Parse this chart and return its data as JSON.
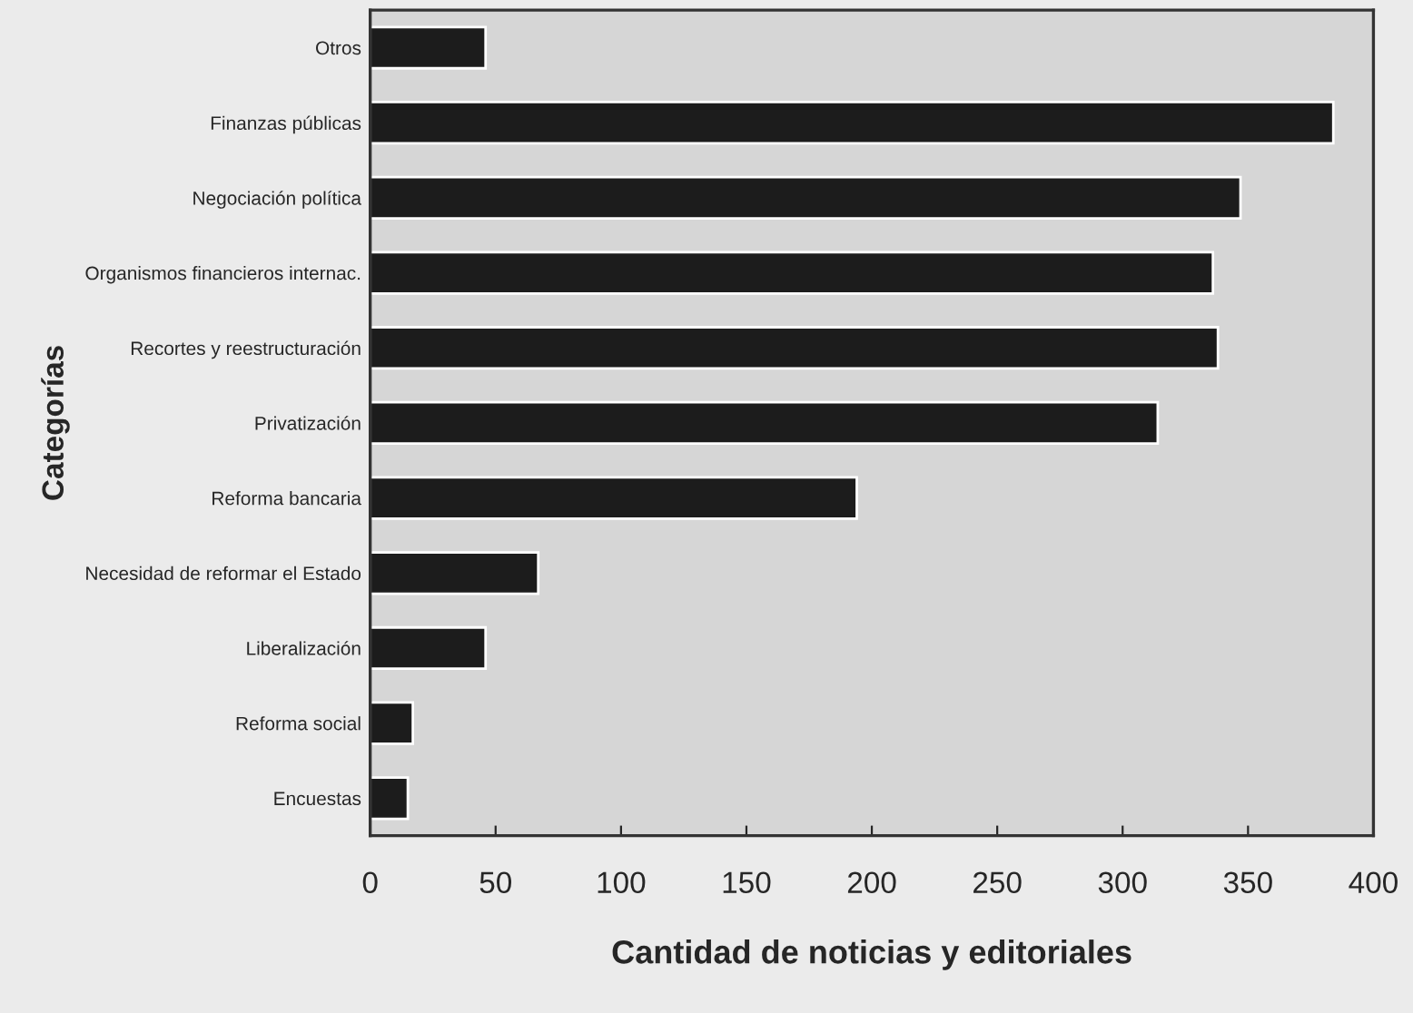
{
  "chart_data": {
    "type": "bar",
    "orientation": "horizontal",
    "categories": [
      "Otros",
      "Finanzas públicas",
      "Negociación política",
      "Organismos financieros internac.",
      "Recortes y reestructuración",
      "Privatización",
      "Reforma bancaria",
      "Necesidad de reformar el Estado",
      "Liberalización",
      "Reforma social",
      "Encuestas"
    ],
    "values": [
      46,
      384,
      347,
      336,
      338,
      314,
      194,
      67,
      46,
      17,
      15
    ],
    "color": "#1c1c1c",
    "xlim": [
      0,
      400
    ],
    "xticks": [
      0,
      50,
      100,
      150,
      200,
      250,
      300,
      350,
      400
    ],
    "xlabel": "Cantidad de noticias y editoriales",
    "ylabel": "Categorías",
    "grid": false
  }
}
